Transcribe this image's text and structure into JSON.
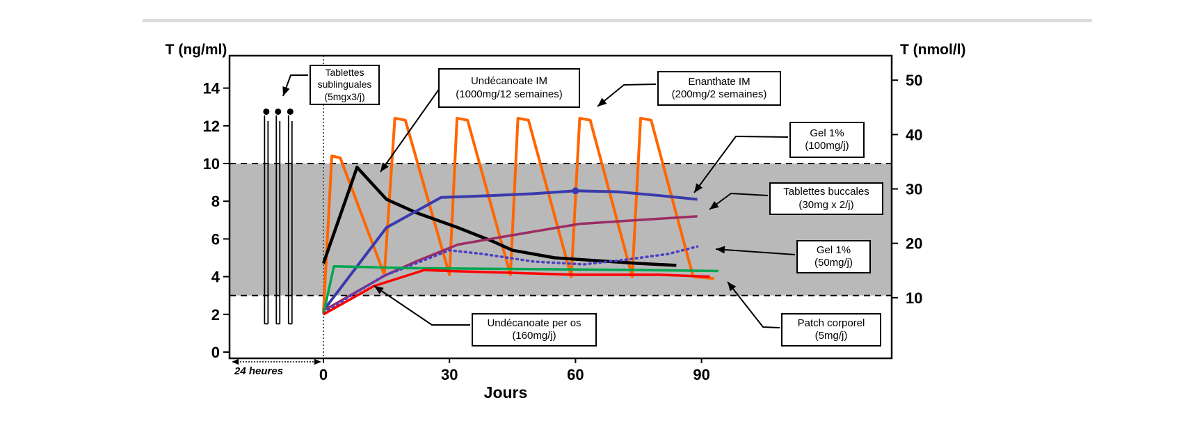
{
  "figure": {
    "kind": "pharmacokinetics comparison of testosterone preparations",
    "language": "French"
  },
  "chart_data": {
    "type": "line",
    "x_axis": {
      "label": "Jours",
      "ticks": [
        0,
        30,
        60,
        90
      ]
    },
    "y_left": {
      "label": "T (ng/ml)",
      "ticks": [
        14,
        12,
        10,
        8,
        6,
        4,
        2,
        0
      ]
    },
    "y_right": {
      "label": "T (nmol/l)",
      "ticks": [
        50,
        40,
        30,
        20,
        10
      ],
      "ngml_per_nmoll": 0.2884
    },
    "normal_range_band": {
      "from_ngml": 3,
      "to_ngml": 10,
      "color": "#b9b9b9"
    },
    "pre_axis_inset": {
      "label": "24 heures"
    },
    "grid": false,
    "legend": "arrow-labeled boxes",
    "series": [
      {
        "id": "sublinguales",
        "name": "Tablettes sublinguales (5mgx3/j)",
        "type": "needles",
        "color": "#000000",
        "needle_days": [
          -13.6,
          -10.8,
          -7.9
        ],
        "peak_ngml": 12.75,
        "base_ngml": 1.5,
        "note": "plotted in expanded 24-hour window left of day 0"
      },
      {
        "id": "enanthate_im",
        "name": "Enanthate IM (200mg/2 semaines)",
        "color": "#ff6600",
        "width": 4,
        "dash": "",
        "points": [
          [
            0,
            2.1
          ],
          [
            2,
            10.4
          ],
          [
            4,
            10.3
          ],
          [
            14.5,
            4.1
          ],
          [
            17,
            12.4
          ],
          [
            19.5,
            12.3
          ],
          [
            30,
            4.1
          ],
          [
            31.8,
            12.4
          ],
          [
            34.3,
            12.3
          ],
          [
            44.5,
            4.1
          ],
          [
            46.3,
            12.4
          ],
          [
            48.8,
            12.3
          ],
          [
            59,
            4.0
          ],
          [
            61,
            12.4
          ],
          [
            63.5,
            12.3
          ],
          [
            73.5,
            4.0
          ],
          [
            75.5,
            12.4
          ],
          [
            78,
            12.3
          ],
          [
            88,
            4.0
          ],
          [
            93,
            3.9
          ]
        ]
      },
      {
        "id": "undec_im",
        "name": "Undécanoate IM (1000mg/12 semaines)",
        "color": "#000000",
        "width": 4.5,
        "dash": "",
        "points": [
          [
            0,
            4.7
          ],
          [
            8,
            9.8
          ],
          [
            15,
            8.1
          ],
          [
            22,
            7.4
          ],
          [
            32,
            6.6
          ],
          [
            40,
            5.9
          ],
          [
            45,
            5.4
          ],
          [
            55,
            5.0
          ],
          [
            65,
            4.85
          ],
          [
            75,
            4.7
          ],
          [
            84,
            4.6
          ]
        ]
      },
      {
        "id": "gel100",
        "name": "Gel 1% (100mg/j)",
        "color": "#3a3aad",
        "width": 4,
        "dash": "",
        "points": [
          [
            0,
            2.2
          ],
          [
            15,
            6.6
          ],
          [
            28,
            8.2
          ],
          [
            40,
            8.3
          ],
          [
            50,
            8.4
          ],
          [
            60,
            8.55
          ],
          [
            70,
            8.5
          ],
          [
            80,
            8.3
          ],
          [
            89,
            8.1
          ]
        ],
        "marker_point": [
          60,
          8.55
        ]
      },
      {
        "id": "buccales",
        "name": "Tablettes buccales (30mg x 2/j)",
        "color": "#9b2d64",
        "width": 3.5,
        "dash": "",
        "points": [
          [
            0,
            2.2
          ],
          [
            15,
            4.1
          ],
          [
            22,
            4.8
          ],
          [
            32,
            5.7
          ],
          [
            45,
            6.2
          ],
          [
            61,
            6.8
          ],
          [
            75,
            7.0
          ],
          [
            89,
            7.2
          ]
        ]
      },
      {
        "id": "gel50",
        "name": "Gel 1% (50mg/j)",
        "color": "#4b3fc4",
        "width": 3.5,
        "dash": "2 5.5",
        "points": [
          [
            0,
            2.1
          ],
          [
            14,
            4.0
          ],
          [
            30,
            5.4
          ],
          [
            38,
            5.2
          ],
          [
            50,
            4.8
          ],
          [
            62,
            4.65
          ],
          [
            72,
            4.9
          ],
          [
            82,
            5.2
          ],
          [
            89,
            5.6
          ]
        ]
      },
      {
        "id": "patch",
        "name": "Patch corporel (5mg/j)",
        "color": "#00a551",
        "width": 3.5,
        "dash": "",
        "points": [
          [
            0,
            2.0
          ],
          [
            2.5,
            4.55
          ],
          [
            20,
            4.45
          ],
          [
            50,
            4.4
          ],
          [
            75,
            4.35
          ],
          [
            94,
            4.3
          ]
        ]
      },
      {
        "id": "peros",
        "name": "Undécanoate per os (160mg/j)",
        "color": "#ff0000",
        "width": 3.5,
        "dash": "",
        "points": [
          [
            0,
            2.0
          ],
          [
            12,
            3.5
          ],
          [
            24,
            4.35
          ],
          [
            30,
            4.3
          ],
          [
            45,
            4.2
          ],
          [
            60,
            4.1
          ],
          [
            80,
            4.1
          ],
          [
            92,
            4.0
          ]
        ]
      }
    ],
    "annotations": {
      "sublinguales": {
        "line1": "Tablettes",
        "line2": "sublinguales",
        "line3": "(5mgx3/j)"
      },
      "undec_im": {
        "line1": "Undécanoate IM",
        "line2": "(1000mg/12 semaines)",
        "line3": ""
      },
      "enanthate_im": {
        "line1": "Enanthate IM",
        "line2": "(200mg/2 semaines)",
        "line3": ""
      },
      "gel100": {
        "line1": "Gel 1%",
        "line2": "(100mg/j)",
        "line3": ""
      },
      "buccales": {
        "line1": "Tablettes buccales",
        "line2": "(30mg x 2/j)",
        "line3": ""
      },
      "gel50": {
        "line1": "Gel 1%",
        "line2": "(50mg/j)",
        "line3": ""
      },
      "patch": {
        "line1": "Patch corporel",
        "line2": "(5mg/j)",
        "line3": ""
      },
      "peros": {
        "line1": "Undécanoate per os",
        "line2": "(160mg/j)",
        "line3": ""
      }
    }
  }
}
